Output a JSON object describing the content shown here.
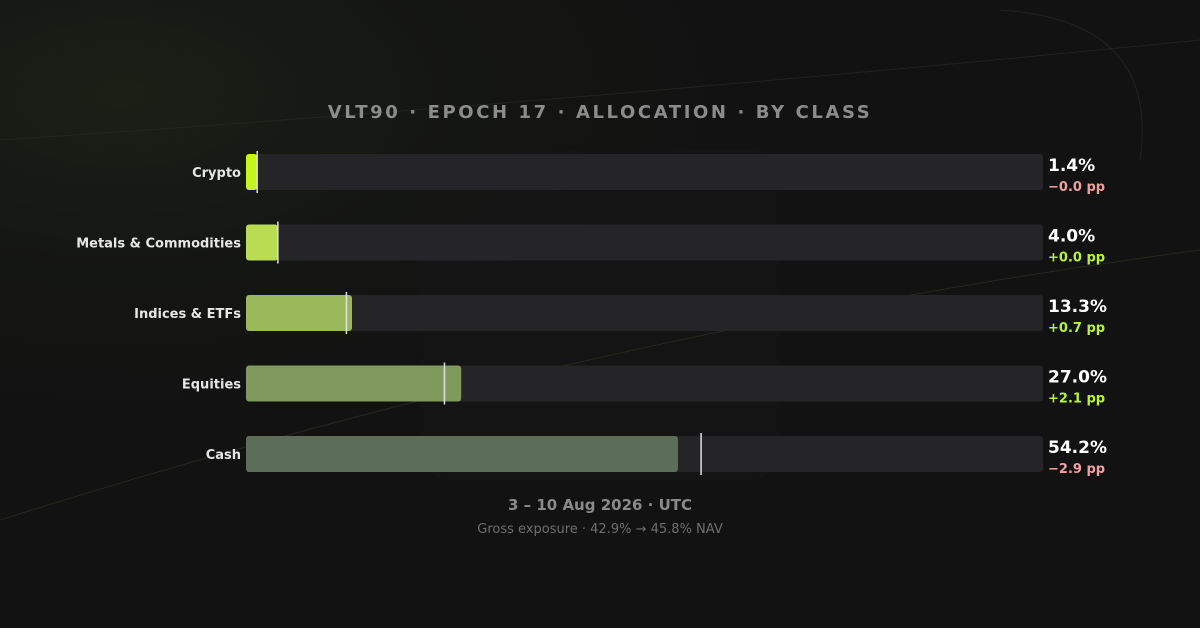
{
  "chart_data": {
    "type": "bar",
    "orientation": "horizontal",
    "title": "VLT90 · EPOCH 17 · ALLOCATION · BY CLASS",
    "categories": [
      "Crypto",
      "Metals & Commodities",
      "Indices & ETFs",
      "Equities",
      "Cash"
    ],
    "values": [
      1.4,
      4.0,
      13.3,
      27.0,
      54.2
    ],
    "value_labels": [
      "1.4%",
      "4.0%",
      "13.3%",
      "27.0%",
      "54.2%"
    ],
    "previous_values": [
      1.4,
      4.0,
      12.6,
      24.9,
      57.1
    ],
    "changes": [
      -0.0,
      0.0,
      0.7,
      2.1,
      -2.9
    ],
    "change_labels": [
      "−0.0 pp",
      "+0.0 pp",
      "+0.7 pp",
      "+2.1 pp",
      "−2.9 pp"
    ],
    "xlim": [
      0,
      100
    ],
    "unit": "%",
    "bar_colors": [
      "#c6f51e",
      "#b9dc52",
      "#9bb95a",
      "#7f9a5c",
      "#5c6d58"
    ],
    "track_color": "#252527",
    "marker_color": "#e0e0e0",
    "positive_color": "#b9f23a",
    "negative_color": "#f0a0a0",
    "grid": false,
    "legend": "none"
  },
  "footer": {
    "date_range": "3 – 10 Aug 2026 · UTC",
    "gross_exposure": "Gross exposure · 42.9% → 45.8% NAV"
  }
}
